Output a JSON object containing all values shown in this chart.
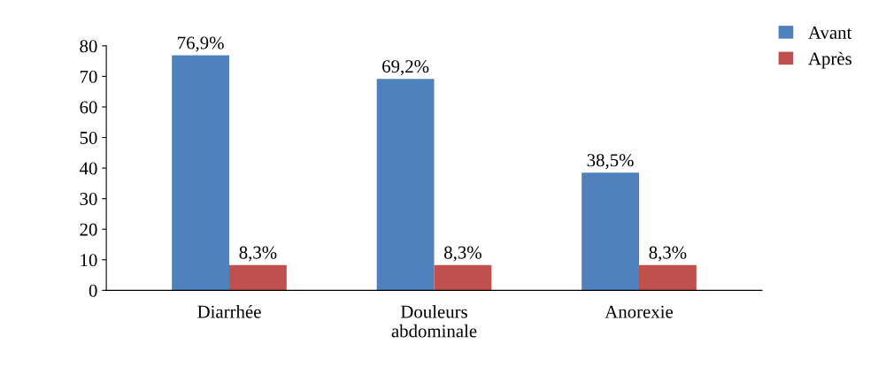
{
  "chart_data": {
    "type": "bar",
    "categories": [
      "Diarrhée",
      "Douleurs\nabdominale",
      "Anorexie"
    ],
    "series": [
      {
        "name": "Avant",
        "color": "#4f81bd",
        "values": [
          76.9,
          69.2,
          38.5
        ],
        "value_labels": [
          "76,9%",
          "69,2%",
          "38,5%"
        ]
      },
      {
        "name": "Après",
        "color": "#c0504d",
        "values": [
          8.3,
          8.3,
          8.3
        ],
        "value_labels": [
          "8,3%",
          "8,3%",
          "8,3%"
        ]
      }
    ],
    "ylim": [
      0,
      80
    ],
    "yticks": [
      0,
      10,
      20,
      30,
      40,
      50,
      60,
      70,
      80
    ],
    "legend": "top right"
  }
}
